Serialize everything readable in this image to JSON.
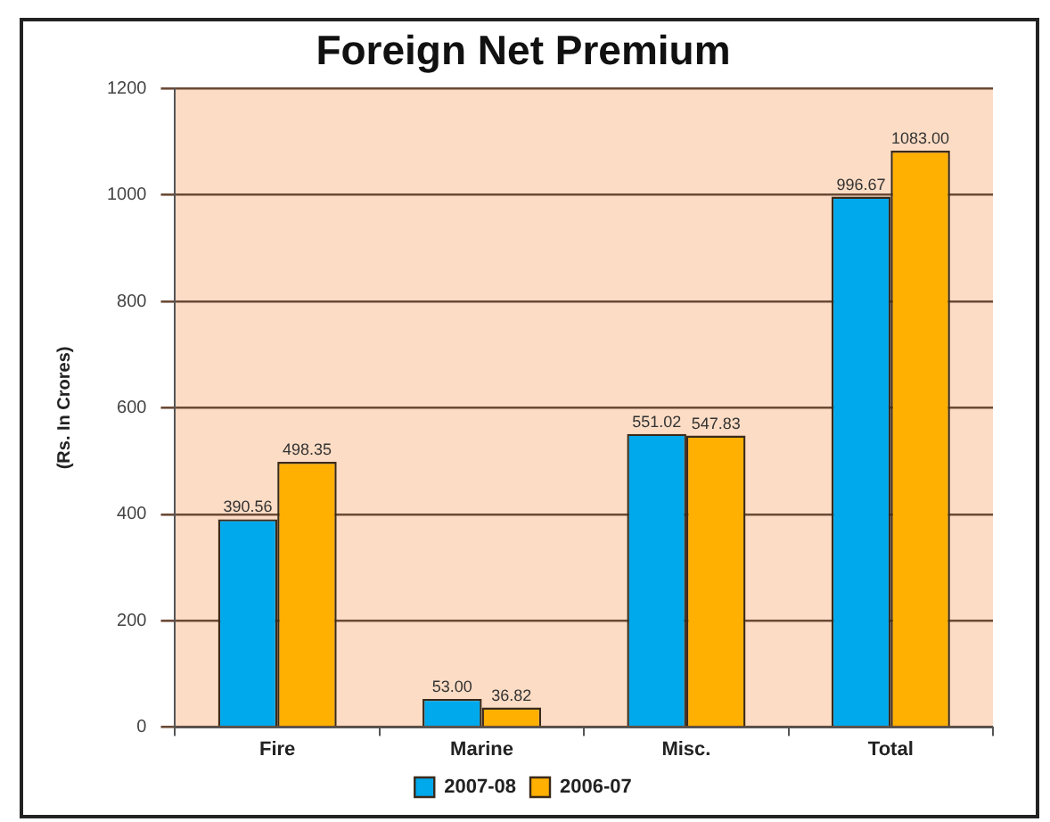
{
  "chart_data": {
    "type": "bar",
    "title": "Foreign Net Premium",
    "ylabel": "(Rs. In Crores)",
    "categories": [
      "Fire",
      "Marine",
      "Misc.",
      "Total"
    ],
    "series": [
      {
        "name": "2007-08",
        "color": "#00a8ec",
        "values": [
          390.56,
          53.0,
          551.02,
          996.67
        ],
        "value_labels": [
          "390.56",
          "53.00",
          "551.02",
          "996.67"
        ]
      },
      {
        "name": "2006-07",
        "color": "#ffb000",
        "values": [
          498.35,
          36.82,
          547.83,
          1083.0
        ],
        "value_labels": [
          "498.35",
          "36.82",
          "547.83",
          "1083.00"
        ]
      }
    ],
    "ylim": [
      0,
      1200
    ],
    "yticks": [
      0,
      200,
      400,
      600,
      800,
      1000,
      1200
    ],
    "grid": "y",
    "legend": "bottom"
  }
}
